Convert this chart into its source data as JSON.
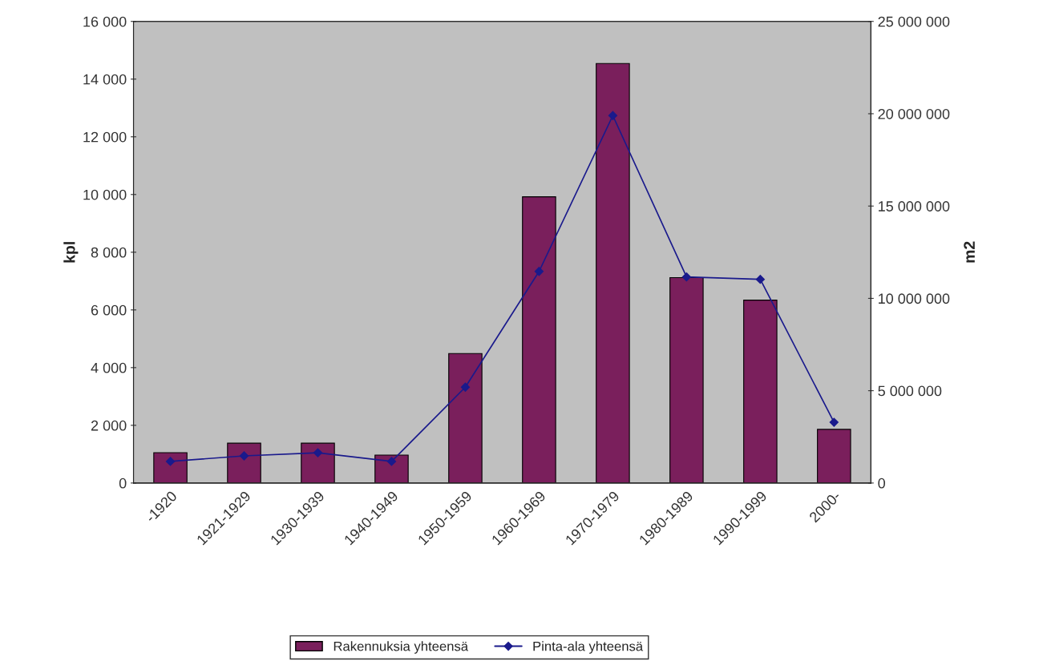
{
  "chart_data": {
    "type": "bar",
    "ylabel": "kpl",
    "y2label": "m2",
    "categories": [
      "-1920",
      "1921-1929",
      "1930-1939",
      "1940-1949",
      "1950-1959",
      "1960-1969",
      "1970-1979",
      "1980-1989",
      "1990-1999",
      "2000-"
    ],
    "series": [
      {
        "name": "Rakennuksia yhteensä",
        "color": "#7a1f5c",
        "values": [
          1050,
          1380,
          1380,
          970,
          4490,
          9920,
          14540,
          7120,
          6340,
          1860
        ]
      },
      {
        "name": "Pinta-ala yhteensä",
        "type": "line",
        "axis": "y2",
        "color": "#1a1a8c",
        "marker": "diamond",
        "values": [
          1170000,
          1470000,
          1640000,
          1170000,
          5190000,
          11460000,
          19900000,
          11160000,
          11030000,
          3290000
        ]
      }
    ],
    "ylim": [
      0,
      16000
    ],
    "yticks": [
      0,
      {
        "value": 2000,
        "label": "2 000"
      },
      {
        "value": 4000,
        "label": "4 000"
      },
      {
        "value": 6000,
        "label": "6 000"
      },
      {
        "value": 8000,
        "label": "8 000"
      },
      {
        "value": 10000,
        "label": "10 000"
      },
      {
        "value": 12000,
        "label": "12 000"
      },
      {
        "value": 14000,
        "label": "14 000"
      },
      {
        "value": 16000,
        "label": "16 000"
      }
    ],
    "y2lim": [
      0,
      25000000
    ],
    "y2ticks": [
      0,
      {
        "value": 5000000,
        "label": "5 000 000"
      },
      {
        "value": 10000000,
        "label": "10 000 000"
      },
      {
        "value": 15000000,
        "label": "15 000 000"
      },
      {
        "value": 20000000,
        "label": "20 000 000"
      },
      {
        "value": 25000000,
        "label": "25 000 000"
      }
    ],
    "grid": false,
    "legend": "bottom"
  }
}
